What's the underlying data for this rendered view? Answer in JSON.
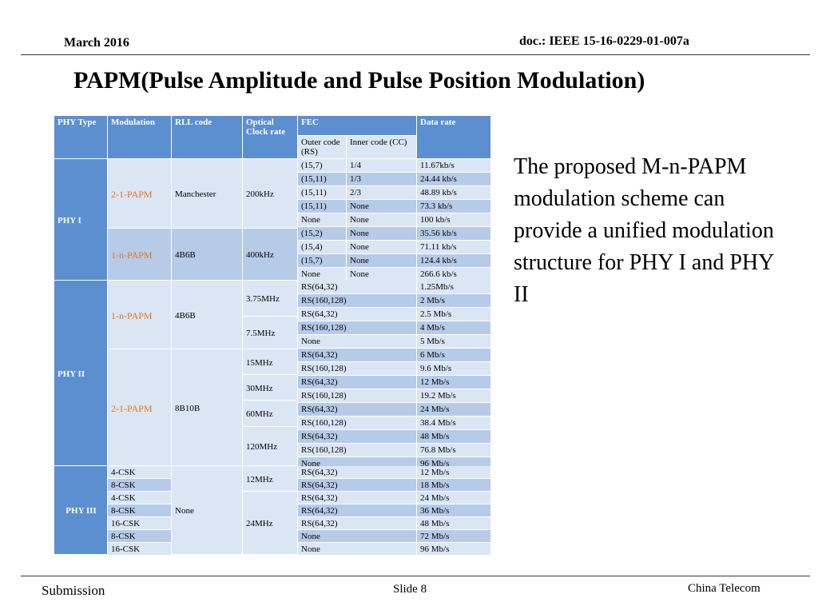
{
  "header": {
    "date": "March 2016",
    "doc_id": "doc.: IEEE 15-16-0229-01-007a"
  },
  "title": "PAPM(Pulse Amplitude and Pulse Position Modulation)",
  "body_text": "The proposed M-n-PAPM modulation scheme can provide a unified modulation structure for PHY I and PHY II",
  "footer": {
    "left": "Submission",
    "center": "Slide 8",
    "right": "China Telecom"
  },
  "table": {
    "headers": {
      "phy_type": "PHY Type",
      "modulation": "Modulation",
      "rll": "RLL code",
      "clock": "Optical Clock rate",
      "fec": "FEC",
      "outer": "Outer code (RS)",
      "inner": "Inner code (CC)",
      "rate": "Data rate"
    },
    "phy": [
      "PHY I",
      "PHY II",
      "PHY III"
    ],
    "groups": [
      {
        "modulation": "2-1-PAPM",
        "rll": "Manchester",
        "clock": "200kHz"
      },
      {
        "modulation": "1-n-PAPM",
        "rll": "4B6B",
        "clock": "400kHz"
      },
      {
        "modulation": "1-n-PAPM",
        "rll": "4B6B"
      },
      {
        "modulation": "2-1-PAPM",
        "rll": "8B10B"
      },
      {
        "rll": "None"
      }
    ],
    "clocks": [
      "3.75MHz",
      "7.5MHz",
      "15MHz",
      "30MHz",
      "60MHz",
      "120MHz",
      "12MHz",
      "24MHz"
    ],
    "rows_phy1": [
      {
        "outer": "(15,7)",
        "inner": "1/4",
        "rate": "11.67kb/s"
      },
      {
        "outer": "(15,11)",
        "inner": "1/3",
        "rate": "24.44 kb/s"
      },
      {
        "outer": "(15,11)",
        "inner": "2/3",
        "rate": "48.89 kb/s"
      },
      {
        "outer": "(15,11)",
        "inner": "None",
        "rate": "73.3 kb/s"
      },
      {
        "outer": "None",
        "inner": "None",
        "rate": "100 kb/s"
      },
      {
        "outer": "(15,2)",
        "inner": "None",
        "rate": "35.56 kb/s"
      },
      {
        "outer": "(15,4)",
        "inner": "None",
        "rate": "71.11 kb/s"
      },
      {
        "outer": "(15,7)",
        "inner": "None",
        "rate": "124.4 kb/s"
      },
      {
        "outer": "None",
        "inner": "None",
        "rate": "266.6 kb/s"
      }
    ],
    "rows_phy2": [
      {
        "fec": "RS(64,32)",
        "rate": "1.25Mb/s"
      },
      {
        "fec": "RS(160,128)",
        "rate": "2 Mb/s"
      },
      {
        "fec": "RS(64,32)",
        "rate": "2.5 Mb/s"
      },
      {
        "fec": "RS(160,128)",
        "rate": "4 Mb/s"
      },
      {
        "fec": "None",
        "rate": "5 Mb/s"
      },
      {
        "fec": "RS(64,32)",
        "rate": "6 Mb/s"
      },
      {
        "fec": "RS(160,128)",
        "rate": "9.6 Mb/s"
      },
      {
        "fec": "RS(64,32)",
        "rate": "12 Mb/s"
      },
      {
        "fec": "RS(160,128)",
        "rate": "19.2 Mb/s"
      },
      {
        "fec": "RS(64,32)",
        "rate": "24 Mb/s"
      },
      {
        "fec": "RS(160,128)",
        "rate": "38.4 Mb/s"
      },
      {
        "fec": "RS(64,32)",
        "rate": "48 Mb/s"
      },
      {
        "fec": "RS(160,128)",
        "rate": "76.8 Mb/s"
      },
      {
        "fec": "None",
        "rate": "96 Mb/s"
      }
    ],
    "rows_phy3": [
      {
        "mod": "4-CSK",
        "fec": "RS(64,32)",
        "rate": "12 Mb/s"
      },
      {
        "mod": "8-CSK",
        "fec": "RS(64,32)",
        "rate": "18 Mb/s"
      },
      {
        "mod": "4-CSK",
        "fec": "RS(64,32)",
        "rate": "24 Mb/s"
      },
      {
        "mod": "8-CSK",
        "fec": "RS(64,32)",
        "rate": "36 Mb/s"
      },
      {
        "mod": "16-CSK",
        "fec": "RS(64,32)",
        "rate": "48 Mb/s"
      },
      {
        "mod": "8-CSK",
        "fec": "None",
        "rate": "72 Mb/s"
      },
      {
        "mod": "16-CSK",
        "fec": "None",
        "rate": "96 Mb/s"
      }
    ]
  }
}
